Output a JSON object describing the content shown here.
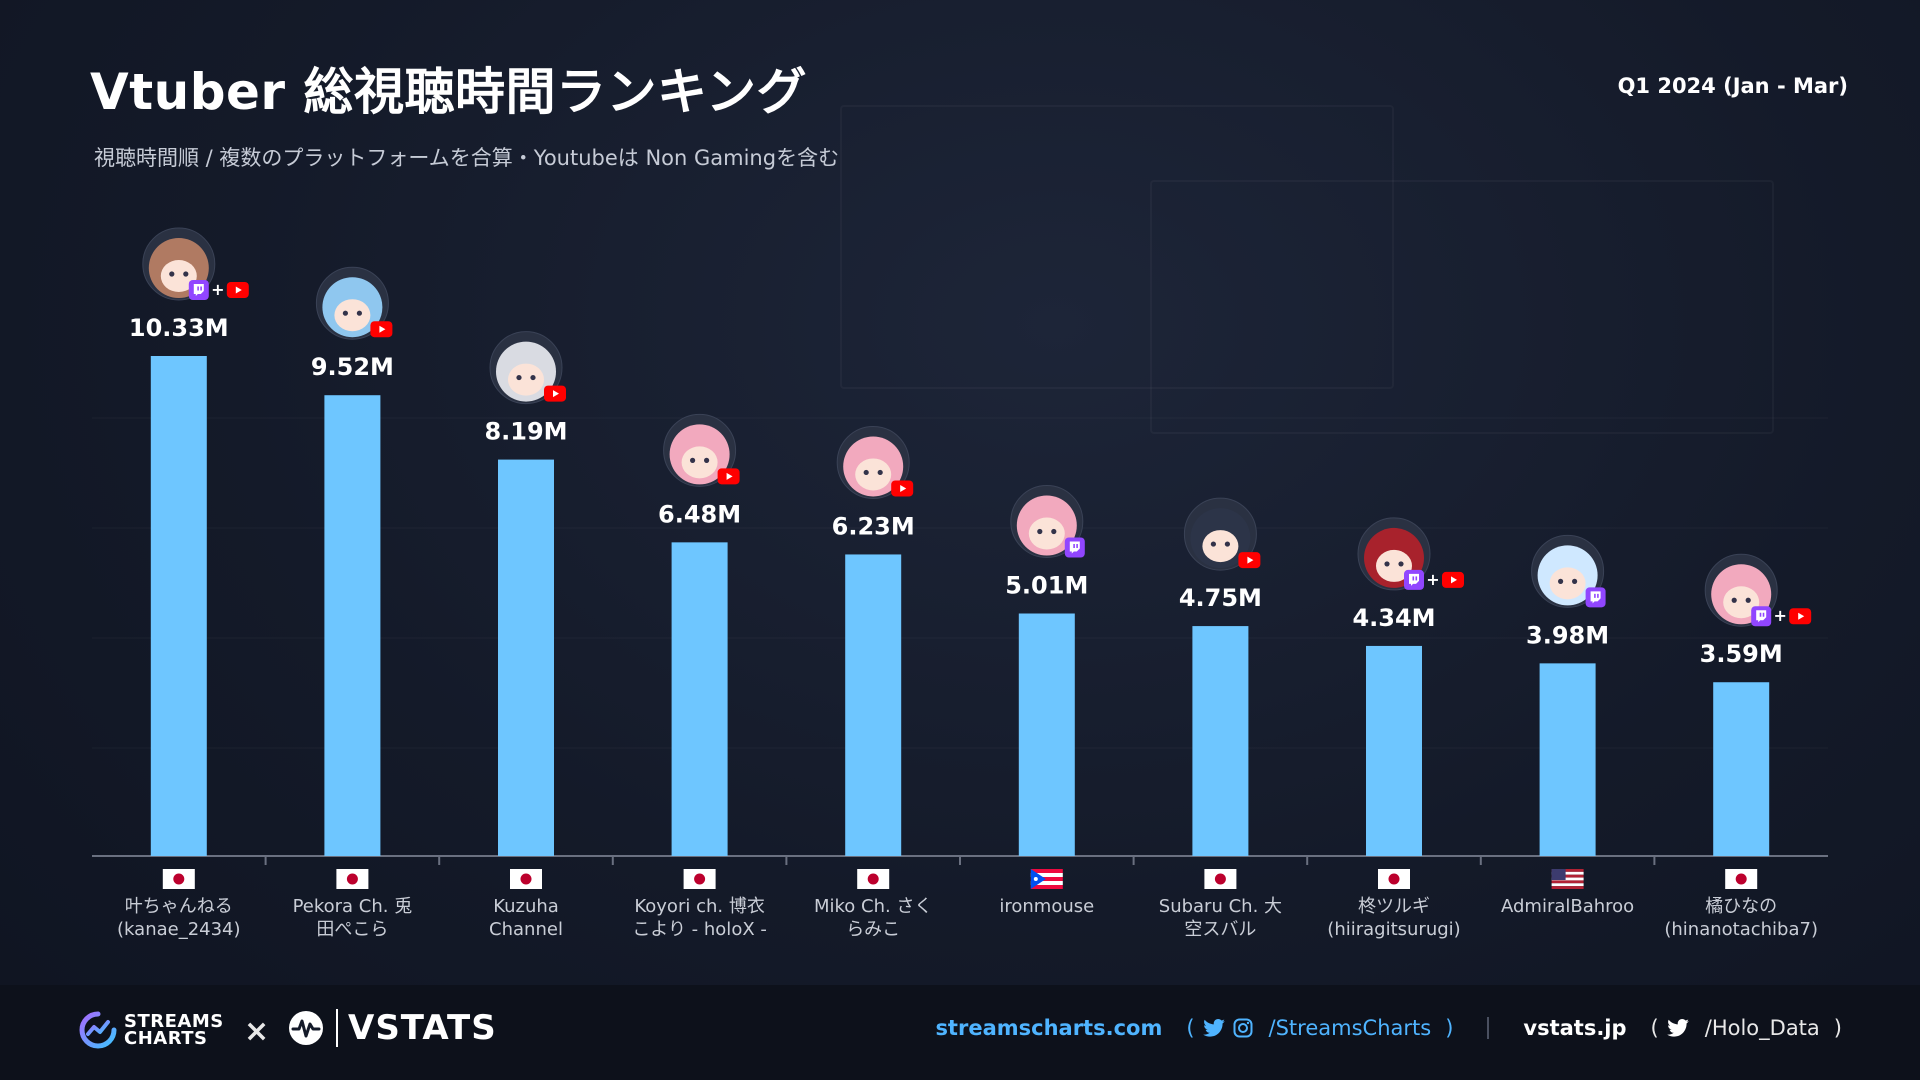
{
  "header": {
    "title": "Vtuber 総視聴時間ランキング",
    "period": "Q1 2024 (Jan - Mar)",
    "subtitle": "視聴時間順 / 複数のプラットフォームを合算・Youtubeは Non Gamingを含む"
  },
  "colors": {
    "bar": "#6ec6ff",
    "twitch": "#9146ff",
    "youtube": "#ff0000",
    "link": "#4fb4ff"
  },
  "chart_data": {
    "type": "bar",
    "categories": [
      "叶ちゃんねる (kanae_2434)",
      "Pekora Ch. 兎田ぺこら",
      "Kuzuha Channel",
      "Koyori ch. 博衣こより - holoX -",
      "Miko Ch. さくらみこ",
      "ironmouse",
      "Subaru Ch. 大空スバル",
      "柊ツルギ (hiiragitsurugi)",
      "AdmiralBahroo",
      "橘ひなの (hinanotachiba7)"
    ],
    "values": [
      10.33,
      9.52,
      8.19,
      6.48,
      6.23,
      5.01,
      4.75,
      4.34,
      3.98,
      3.59
    ],
    "unit": "M",
    "ylim": [
      0,
      10.33
    ],
    "grid": false,
    "items": [
      {
        "value_label": "10.33M",
        "label_lines": [
          "叶ちゃんねる",
          "(kanae_2434)"
        ],
        "flag": "jp",
        "platforms": [
          "twitch",
          "youtube"
        ],
        "avatar": "avatar-brown-hair"
      },
      {
        "value_label": "9.52M",
        "label_lines": [
          "Pekora Ch. 兎",
          "田ぺこら"
        ],
        "flag": "jp",
        "platforms": [
          "youtube"
        ],
        "avatar": "avatar-blue-hair"
      },
      {
        "value_label": "8.19M",
        "label_lines": [
          "Kuzuha",
          "Channel"
        ],
        "flag": "jp",
        "platforms": [
          "youtube"
        ],
        "avatar": "avatar-white-hair"
      },
      {
        "value_label": "6.48M",
        "label_lines": [
          "Koyori ch. 博衣",
          "こより - holoX -"
        ],
        "flag": "jp",
        "platforms": [
          "youtube"
        ],
        "avatar": "avatar-pink-hair"
      },
      {
        "value_label": "6.23M",
        "label_lines": [
          "Miko Ch. さく",
          "らみこ"
        ],
        "flag": "jp",
        "platforms": [
          "youtube"
        ],
        "avatar": "avatar-pink-hair"
      },
      {
        "value_label": "5.01M",
        "label_lines": [
          "ironmouse"
        ],
        "flag": "pr",
        "platforms": [
          "twitch"
        ],
        "avatar": "avatar-pink-hair"
      },
      {
        "value_label": "4.75M",
        "label_lines": [
          "Subaru Ch. 大",
          "空スバル"
        ],
        "flag": "jp",
        "platforms": [
          "youtube"
        ],
        "avatar": "avatar-dark-hair"
      },
      {
        "value_label": "4.34M",
        "label_lines": [
          "柊ツルギ",
          "(hiiragitsurugi)"
        ],
        "flag": "jp",
        "platforms": [
          "twitch",
          "youtube"
        ],
        "avatar": "avatar-red-hair"
      },
      {
        "value_label": "3.98M",
        "label_lines": [
          "AdmiralBahroo"
        ],
        "flag": "us",
        "platforms": [
          "twitch"
        ],
        "avatar": "avatar-panda"
      },
      {
        "value_label": "3.59M",
        "label_lines": [
          "橘ひなの",
          "(hinanotachiba7)"
        ],
        "flag": "jp",
        "platforms": [
          "twitch",
          "youtube"
        ],
        "avatar": "avatar-pink-hair"
      }
    ]
  },
  "footer": {
    "streamscharts_logo": "STREAMS CHARTS",
    "times": "×",
    "vstats_logo": "VSTATS",
    "sc_site": "streamscharts.com",
    "open_paren": "(",
    "sc_handle": "/StreamsCharts",
    "close_paren": ")",
    "vs_site": "vstats.jp",
    "vs_handle": "/Holo_Data",
    "icons": [
      "twitter-icon",
      "instagram-icon",
      "twitter-icon"
    ]
  }
}
